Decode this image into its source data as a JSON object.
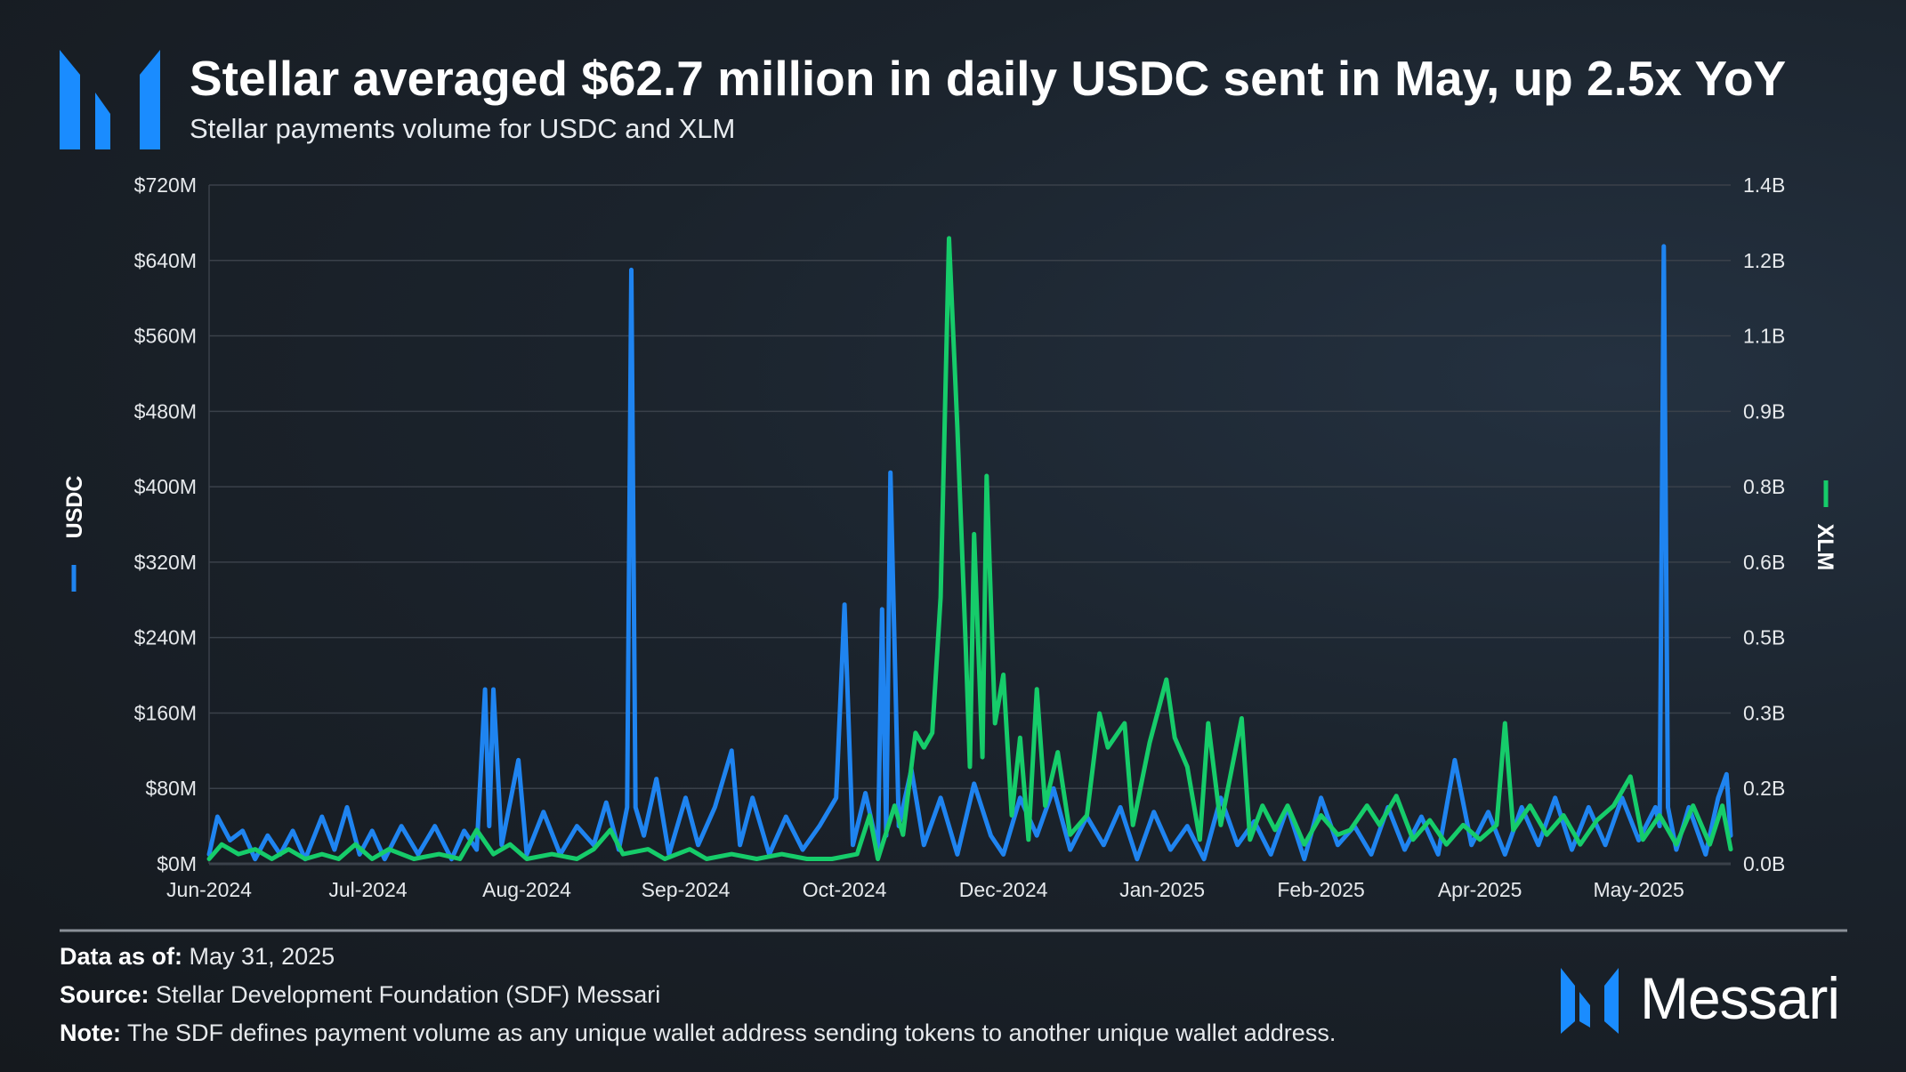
{
  "header": {
    "title": "Stellar averaged $62.7 million in daily USDC sent in May, up 2.5x YoY",
    "subtitle": "Stellar payments volume for USDC and XLM"
  },
  "colors": {
    "usdc": "#1f84f0",
    "xlm": "#16cc6a",
    "logo": "#1a8cff",
    "grid": "#3a414a"
  },
  "chart_data": {
    "type": "line",
    "title": "Stellar averaged $62.7 million in daily USDC sent in May, up 2.5x YoY",
    "subtitle": "Stellar payments volume for USDC and XLM",
    "x_tick_labels": [
      "Jun-2024",
      "Jul-2024",
      "Aug-2024",
      "Sep-2024",
      "Oct-2024",
      "Dec-2024",
      "Jan-2025",
      "Feb-2025",
      "Apr-2025",
      "May-2025"
    ],
    "x_range": [
      "2024-06-01",
      "2025-05-31"
    ],
    "left_axis": {
      "label": "USDC",
      "range": [
        0,
        720
      ],
      "unit": "$M",
      "tick_labels": [
        "$0M",
        "$80M",
        "$160M",
        "$240M",
        "$320M",
        "$400M",
        "$480M",
        "$560M",
        "$640M",
        "$720M"
      ]
    },
    "right_axis": {
      "label": "XLM",
      "range": [
        0,
        1.4
      ],
      "unit": "B",
      "tick_labels": [
        "0.0B",
        "0.2B",
        "0.3B",
        "0.5B",
        "0.6B",
        "0.8B",
        "0.9B",
        "1.1B",
        "1.2B",
        "1.4B"
      ]
    },
    "grid": true,
    "series": [
      {
        "name": "USDC",
        "axis": "left",
        "color": "#1f84f0",
        "points": [
          [
            "2024-06-01",
            10
          ],
          [
            "2024-06-03",
            50
          ],
          [
            "2024-06-06",
            25
          ],
          [
            "2024-06-09",
            35
          ],
          [
            "2024-06-12",
            5
          ],
          [
            "2024-06-15",
            30
          ],
          [
            "2024-06-18",
            10
          ],
          [
            "2024-06-21",
            35
          ],
          [
            "2024-06-24",
            5
          ],
          [
            "2024-06-28",
            50
          ],
          [
            "2024-07-01",
            15
          ],
          [
            "2024-07-04",
            60
          ],
          [
            "2024-07-07",
            10
          ],
          [
            "2024-07-10",
            35
          ],
          [
            "2024-07-13",
            5
          ],
          [
            "2024-07-17",
            40
          ],
          [
            "2024-07-21",
            10
          ],
          [
            "2024-07-25",
            40
          ],
          [
            "2024-07-29",
            5
          ],
          [
            "2024-08-01",
            35
          ],
          [
            "2024-08-04",
            15
          ],
          [
            "2024-08-06",
            185
          ],
          [
            "2024-08-07",
            40
          ],
          [
            "2024-08-08",
            185
          ],
          [
            "2024-08-10",
            20
          ],
          [
            "2024-08-14",
            110
          ],
          [
            "2024-08-16",
            10
          ],
          [
            "2024-08-20",
            55
          ],
          [
            "2024-08-24",
            10
          ],
          [
            "2024-08-28",
            40
          ],
          [
            "2024-09-01",
            20
          ],
          [
            "2024-09-04",
            65
          ],
          [
            "2024-09-07",
            15
          ],
          [
            "2024-09-09",
            60
          ],
          [
            "2024-09-10",
            630
          ],
          [
            "2024-09-11",
            60
          ],
          [
            "2024-09-13",
            30
          ],
          [
            "2024-09-16",
            90
          ],
          [
            "2024-09-19",
            10
          ],
          [
            "2024-09-23",
            70
          ],
          [
            "2024-09-26",
            20
          ],
          [
            "2024-09-30",
            60
          ],
          [
            "2024-10-04",
            120
          ],
          [
            "2024-10-06",
            20
          ],
          [
            "2024-10-09",
            70
          ],
          [
            "2024-10-13",
            10
          ],
          [
            "2024-10-17",
            50
          ],
          [
            "2024-10-21",
            15
          ],
          [
            "2024-10-25",
            40
          ],
          [
            "2024-10-29",
            70
          ],
          [
            "2024-10-31",
            275
          ],
          [
            "2024-11-02",
            20
          ],
          [
            "2024-11-05",
            75
          ],
          [
            "2024-11-08",
            15
          ],
          [
            "2024-11-09",
            270
          ],
          [
            "2024-11-10",
            30
          ],
          [
            "2024-11-11",
            415
          ],
          [
            "2024-11-13",
            40
          ],
          [
            "2024-11-16",
            100
          ],
          [
            "2024-11-19",
            20
          ],
          [
            "2024-11-23",
            70
          ],
          [
            "2024-11-27",
            10
          ],
          [
            "2024-12-01",
            85
          ],
          [
            "2024-12-05",
            30
          ],
          [
            "2024-12-08",
            10
          ],
          [
            "2024-12-12",
            70
          ],
          [
            "2024-12-16",
            30
          ],
          [
            "2024-12-20",
            80
          ],
          [
            "2024-12-24",
            15
          ],
          [
            "2024-12-28",
            50
          ],
          [
            "2025-01-01",
            20
          ],
          [
            "2025-01-05",
            60
          ],
          [
            "2025-01-09",
            5
          ],
          [
            "2025-01-13",
            55
          ],
          [
            "2025-01-17",
            15
          ],
          [
            "2025-01-21",
            40
          ],
          [
            "2025-01-25",
            5
          ],
          [
            "2025-01-29",
            70
          ],
          [
            "2025-02-02",
            20
          ],
          [
            "2025-02-06",
            45
          ],
          [
            "2025-02-10",
            10
          ],
          [
            "2025-02-14",
            60
          ],
          [
            "2025-02-18",
            5
          ],
          [
            "2025-02-22",
            70
          ],
          [
            "2025-02-26",
            20
          ],
          [
            "2025-03-02",
            40
          ],
          [
            "2025-03-06",
            10
          ],
          [
            "2025-03-10",
            60
          ],
          [
            "2025-03-14",
            15
          ],
          [
            "2025-03-18",
            50
          ],
          [
            "2025-03-22",
            10
          ],
          [
            "2025-03-26",
            110
          ],
          [
            "2025-03-30",
            20
          ],
          [
            "2025-04-03",
            55
          ],
          [
            "2025-04-07",
            10
          ],
          [
            "2025-04-11",
            60
          ],
          [
            "2025-04-15",
            20
          ],
          [
            "2025-04-19",
            70
          ],
          [
            "2025-04-23",
            15
          ],
          [
            "2025-04-27",
            60
          ],
          [
            "2025-05-01",
            20
          ],
          [
            "2025-05-05",
            70
          ],
          [
            "2025-05-09",
            25
          ],
          [
            "2025-05-13",
            60
          ],
          [
            "2025-05-14",
            40
          ],
          [
            "2025-05-15",
            655
          ],
          [
            "2025-05-16",
            60
          ],
          [
            "2025-05-18",
            15
          ],
          [
            "2025-05-21",
            60
          ],
          [
            "2025-05-25",
            10
          ],
          [
            "2025-05-28",
            70
          ],
          [
            "2025-05-30",
            95
          ],
          [
            "2025-05-31",
            30
          ]
        ]
      },
      {
        "name": "XLM",
        "axis": "right",
        "color": "#16cc6a",
        "points": [
          [
            "2024-06-01",
            0.01
          ],
          [
            "2024-06-04",
            0.04
          ],
          [
            "2024-06-08",
            0.02
          ],
          [
            "2024-06-12",
            0.03
          ],
          [
            "2024-06-16",
            0.01
          ],
          [
            "2024-06-20",
            0.03
          ],
          [
            "2024-06-24",
            0.01
          ],
          [
            "2024-06-28",
            0.02
          ],
          [
            "2024-07-02",
            0.01
          ],
          [
            "2024-07-06",
            0.04
          ],
          [
            "2024-07-10",
            0.01
          ],
          [
            "2024-07-14",
            0.03
          ],
          [
            "2024-07-20",
            0.01
          ],
          [
            "2024-07-26",
            0.02
          ],
          [
            "2024-07-31",
            0.01
          ],
          [
            "2024-08-04",
            0.07
          ],
          [
            "2024-08-08",
            0.02
          ],
          [
            "2024-08-12",
            0.04
          ],
          [
            "2024-08-16",
            0.01
          ],
          [
            "2024-08-22",
            0.02
          ],
          [
            "2024-08-28",
            0.01
          ],
          [
            "2024-09-01",
            0.03
          ],
          [
            "2024-09-05",
            0.07
          ],
          [
            "2024-09-08",
            0.02
          ],
          [
            "2024-09-14",
            0.03
          ],
          [
            "2024-09-18",
            0.01
          ],
          [
            "2024-09-24",
            0.03
          ],
          [
            "2024-09-28",
            0.01
          ],
          [
            "2024-10-04",
            0.02
          ],
          [
            "2024-10-10",
            0.01
          ],
          [
            "2024-10-16",
            0.02
          ],
          [
            "2024-10-22",
            0.01
          ],
          [
            "2024-10-28",
            0.01
          ],
          [
            "2024-11-03",
            0.02
          ],
          [
            "2024-11-06",
            0.1
          ],
          [
            "2024-11-08",
            0.01
          ],
          [
            "2024-11-12",
            0.12
          ],
          [
            "2024-11-14",
            0.06
          ],
          [
            "2024-11-17",
            0.27
          ],
          [
            "2024-11-19",
            0.24
          ],
          [
            "2024-11-21",
            0.27
          ],
          [
            "2024-11-23",
            0.55
          ],
          [
            "2024-11-25",
            1.29
          ],
          [
            "2024-11-27",
            0.9
          ],
          [
            "2024-11-29",
            0.45
          ],
          [
            "2024-11-30",
            0.2
          ],
          [
            "2024-12-01",
            0.68
          ],
          [
            "2024-12-03",
            0.22
          ],
          [
            "2024-12-04",
            0.8
          ],
          [
            "2024-12-06",
            0.29
          ],
          [
            "2024-12-08",
            0.39
          ],
          [
            "2024-12-10",
            0.1
          ],
          [
            "2024-12-12",
            0.26
          ],
          [
            "2024-12-14",
            0.05
          ],
          [
            "2024-12-16",
            0.36
          ],
          [
            "2024-12-18",
            0.12
          ],
          [
            "2024-12-21",
            0.23
          ],
          [
            "2024-12-24",
            0.06
          ],
          [
            "2024-12-28",
            0.1
          ],
          [
            "2024-12-31",
            0.31
          ],
          [
            "2025-01-02",
            0.24
          ],
          [
            "2025-01-06",
            0.29
          ],
          [
            "2025-01-08",
            0.08
          ],
          [
            "2025-01-12",
            0.25
          ],
          [
            "2025-01-16",
            0.38
          ],
          [
            "2025-01-18",
            0.26
          ],
          [
            "2025-01-21",
            0.2
          ],
          [
            "2025-01-24",
            0.05
          ],
          [
            "2025-01-26",
            0.29
          ],
          [
            "2025-01-29",
            0.08
          ],
          [
            "2025-02-03",
            0.3
          ],
          [
            "2025-02-05",
            0.05
          ],
          [
            "2025-02-08",
            0.12
          ],
          [
            "2025-02-11",
            0.07
          ],
          [
            "2025-02-14",
            0.12
          ],
          [
            "2025-02-18",
            0.04
          ],
          [
            "2025-02-22",
            0.1
          ],
          [
            "2025-02-26",
            0.06
          ],
          [
            "2025-03-01",
            0.07
          ],
          [
            "2025-03-05",
            0.12
          ],
          [
            "2025-03-08",
            0.08
          ],
          [
            "2025-03-12",
            0.14
          ],
          [
            "2025-03-16",
            0.05
          ],
          [
            "2025-03-20",
            0.09
          ],
          [
            "2025-03-24",
            0.04
          ],
          [
            "2025-03-28",
            0.08
          ],
          [
            "2025-04-01",
            0.05
          ],
          [
            "2025-04-05",
            0.08
          ],
          [
            "2025-04-07",
            0.29
          ],
          [
            "2025-04-09",
            0.07
          ],
          [
            "2025-04-13",
            0.12
          ],
          [
            "2025-04-17",
            0.06
          ],
          [
            "2025-04-21",
            0.1
          ],
          [
            "2025-04-25",
            0.04
          ],
          [
            "2025-04-29",
            0.09
          ],
          [
            "2025-05-03",
            0.12
          ],
          [
            "2025-05-07",
            0.18
          ],
          [
            "2025-05-10",
            0.05
          ],
          [
            "2025-05-14",
            0.1
          ],
          [
            "2025-05-18",
            0.04
          ],
          [
            "2025-05-22",
            0.12
          ],
          [
            "2025-05-26",
            0.04
          ],
          [
            "2025-05-29",
            0.12
          ],
          [
            "2025-05-31",
            0.03
          ]
        ]
      }
    ]
  },
  "footer": {
    "data_as_of_label": "Data as of:",
    "data_as_of_value": " May 31, 2025",
    "source_label": "Source:",
    "source_value": " Stellar Development Foundation (SDF) Messari",
    "note_label": "Note:",
    "note_value": " The SDF defines payment volume as any unique wallet address sending tokens to another unique wallet address.",
    "brand": "Messari"
  }
}
